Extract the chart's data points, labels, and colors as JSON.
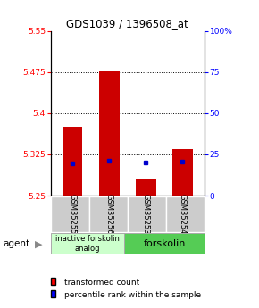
{
  "title": "GDS1039 / 1396508_at",
  "ylim_left": [
    5.25,
    5.55
  ],
  "ylim_right": [
    0,
    100
  ],
  "yticks_left": [
    5.25,
    5.325,
    5.4,
    5.475,
    5.55
  ],
  "yticks_right": [
    0,
    25,
    50,
    75,
    100
  ],
  "ytick_labels_left": [
    "5.25",
    "5.325",
    "5.4",
    "5.475",
    "5.55"
  ],
  "ytick_labels_right": [
    "0",
    "25",
    "50",
    "75",
    "100%"
  ],
  "samples": [
    "GSM35255",
    "GSM35256",
    "GSM35253",
    "GSM35254"
  ],
  "bar_tops": [
    5.375,
    5.478,
    5.281,
    5.335
  ],
  "bar_bottoms": [
    5.25,
    5.25,
    5.25,
    5.25
  ],
  "blue_y": [
    5.309,
    5.313,
    5.311,
    5.312
  ],
  "bar_color": "#cc0000",
  "blue_color": "#0000cc",
  "agent_label": "agent",
  "group1_label": "inactive forskolin\nanalog",
  "group2_label": "forskolin",
  "group1_color": "#ccffcc",
  "group2_color": "#55cc55",
  "legend_red": "transformed count",
  "legend_blue": "percentile rank within the sample",
  "sample_box_color": "#cccccc",
  "bar_width": 0.55
}
